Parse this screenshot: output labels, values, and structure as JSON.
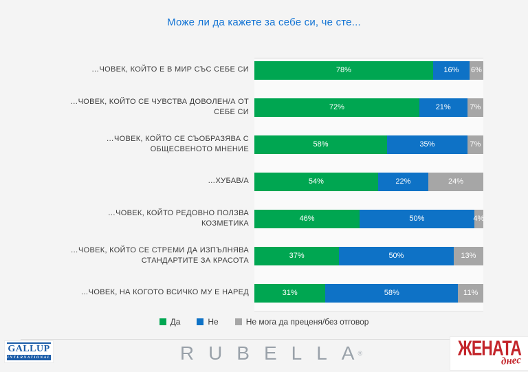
{
  "title": {
    "text": "Може ли да кажете за себе си, че сте...",
    "color": "#1273d4"
  },
  "chart_data": {
    "type": "bar",
    "stacked": true,
    "orientation": "horizontal",
    "value_unit": "%",
    "xlim": [
      0,
      100
    ],
    "grid": false,
    "legend_position": "bottom",
    "categories": [
      "…ЧОВЕК, КОЙТО Е В МИР СЪС СЕБЕ СИ",
      "…ЧОВЕК, КОЙТО СЕ ЧУВСТВА ДОВОЛЕН/А ОТ СЕБЕ СИ",
      "…ЧОВЕК, КОЙТО СЕ СЪОБРАЗЯВА С ОБЩЕСВЕНОТО МНЕНИЕ",
      "…ХУБАВ/А",
      "…ЧОВЕК, КОЙТО РЕДОВНО ПОЛЗВА КОЗМЕТИКА",
      "…ЧОВЕК, КОЙТО СЕ СТРЕМИ ДА ИЗПЪЛНЯВА СТАНДАРТИТЕ ЗА КРАСОТА",
      "…ЧОВЕК, НА КОГОТО ВСИЧКО МУ Е НАРЕД"
    ],
    "series": [
      {
        "name": "Да",
        "color": "#00a651",
        "values": [
          78,
          72,
          58,
          54,
          46,
          37,
          31
        ]
      },
      {
        "name": "Не",
        "color": "#0e72c6",
        "values": [
          16,
          21,
          35,
          22,
          50,
          50,
          58
        ]
      },
      {
        "name": "Не мога да преценя/без отговор",
        "color": "#a6a6a6",
        "values": [
          6,
          7,
          7,
          24,
          4,
          13,
          11
        ]
      }
    ]
  },
  "footer": {
    "gallup": {
      "line1": "GALLUP",
      "line2": "INTERNATIONAL",
      "color": "#1b5ca8"
    },
    "rubella": {
      "text": "RUBELLA",
      "mark": "®",
      "color": "#99a1a9"
    },
    "zhenata": {
      "line1": "ЖЕНАТА",
      "line2": "днес",
      "color": "#c3242a"
    }
  }
}
